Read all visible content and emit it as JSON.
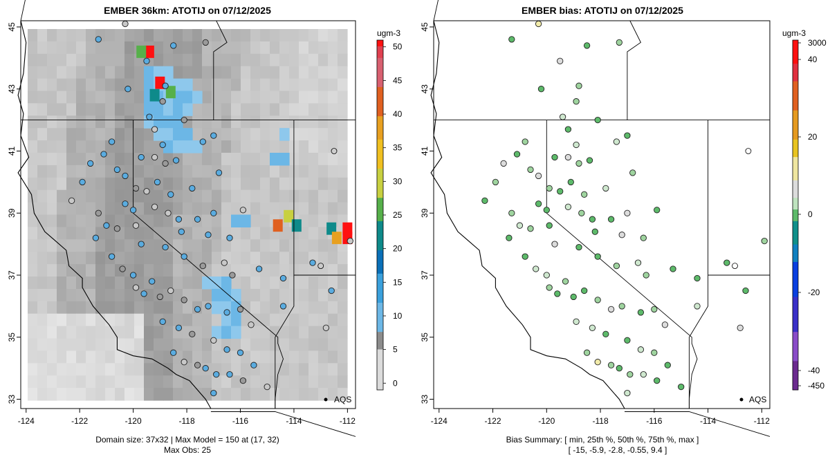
{
  "legend_unit": "ugm-3",
  "left_panel": {
    "chart_data": {
      "type": "heatmap",
      "title": "EMBER 36km: ATOTIJ on 07/12/2025",
      "x_ticks": [
        "-124",
        "-122",
        "-120",
        "-118",
        "-116",
        "-114",
        "-112"
      ],
      "y_ticks": [
        "33",
        "35",
        "37",
        "39",
        "41",
        "43",
        "45"
      ],
      "xlim": [
        -124.2,
        -111.7
      ],
      "ylim": [
        32.7,
        45.2
      ],
      "colorbar": {
        "label": "ugm-3",
        "ticks": [
          "0",
          "5",
          "10",
          "15",
          "20",
          "25",
          "30",
          "35",
          "40",
          "45",
          "50"
        ],
        "range": [
          -1,
          51
        ]
      },
      "hotspots": [
        {
          "lon": -119.4,
          "lat": 44.2,
          "value": 50
        },
        {
          "lon": -119.7,
          "lat": 44.2,
          "value": 25
        },
        {
          "lon": -119.0,
          "lat": 43.2,
          "value": 50
        },
        {
          "lon": -118.6,
          "lat": 42.9,
          "value": 25
        },
        {
          "lon": -119.2,
          "lat": 42.8,
          "value": 20
        },
        {
          "lon": -114.2,
          "lat": 38.9,
          "value": 30
        },
        {
          "lon": -114.6,
          "lat": 38.6,
          "value": 40
        },
        {
          "lon": -113.9,
          "lat": 38.6,
          "value": 20
        },
        {
          "lon": -112.6,
          "lat": 38.5,
          "value": 22
        },
        {
          "lon": -112.0,
          "lat": 38.5,
          "value": 50
        },
        {
          "lon": -112.0,
          "lat": 38.2,
          "value": 50
        },
        {
          "lon": -112.4,
          "lat": 38.2,
          "value": 37
        }
      ],
      "obs_count_shown": 120,
      "obs_legend_label": "AQS"
    },
    "footer_line1": "Domain size: 37x32 | Max Model = 150 at (17, 32)",
    "footer_line2": "Max Obs: 25"
  },
  "right_panel": {
    "chart_data": {
      "type": "scatter",
      "title": "EMBER bias: ATOTIJ on 07/12/2025",
      "x_ticks": [
        "-124",
        "-122",
        "-120",
        "-118",
        "-116",
        "-114",
        "-112"
      ],
      "y_ticks": [
        "33",
        "35",
        "37",
        "39",
        "41",
        "43",
        "45"
      ],
      "xlim": [
        -124.2,
        -111.7
      ],
      "ylim": [
        32.7,
        45.2
      ],
      "colorbar": {
        "label": "ugm-3",
        "ticks": [
          "3000",
          "40",
          "20",
          "0",
          "-20",
          "-40",
          "-450"
        ]
      },
      "bias_summary": {
        "min": -15,
        "p25": -5.9,
        "median": -2.8,
        "p75": -0.55,
        "max": 9.4
      },
      "obs_legend_label": "AQS"
    },
    "footer_line1": "Bias Summary: [ min, 25th %, 50th %, 75th %, max ]",
    "footer_line2": "[ -15,   -5.9,   -2.8,   -0.55,   9.4 ]"
  }
}
